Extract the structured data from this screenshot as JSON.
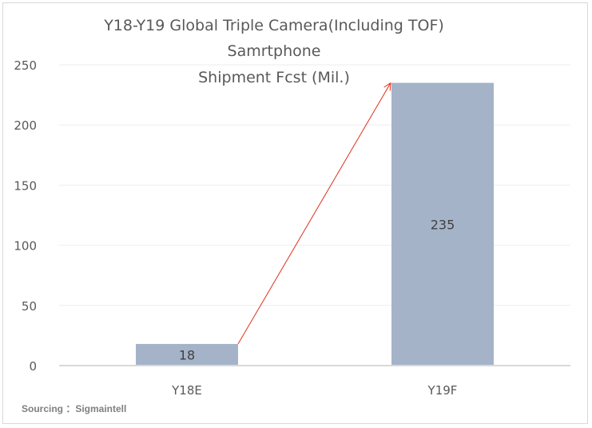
{
  "chart_data": {
    "type": "bar",
    "title_lines": [
      "Y18-Y19 Global Triple Camera(Including TOF)",
      "Samrtphone",
      "Shipment Fcst (Mil.)"
    ],
    "categories": [
      "Y18E",
      "Y19F"
    ],
    "values": [
      18,
      235
    ],
    "data_labels": [
      "18",
      "235"
    ],
    "xlabel": "",
    "ylabel": "",
    "ylim": [
      0,
      250
    ],
    "yticks": [
      "0",
      "50",
      "100",
      "150",
      "200",
      "250"
    ],
    "grid": true,
    "legend": "none",
    "annotation": "red arrow from Y18E bar top to Y19F bar top",
    "colors": {
      "bar": "#a5b3c9",
      "arrow": "#e0301e",
      "grid": "#eeeeee",
      "axis": "#d9d9d9"
    }
  },
  "footer": {
    "source": "Sourcing ：Sigmaintell"
  }
}
